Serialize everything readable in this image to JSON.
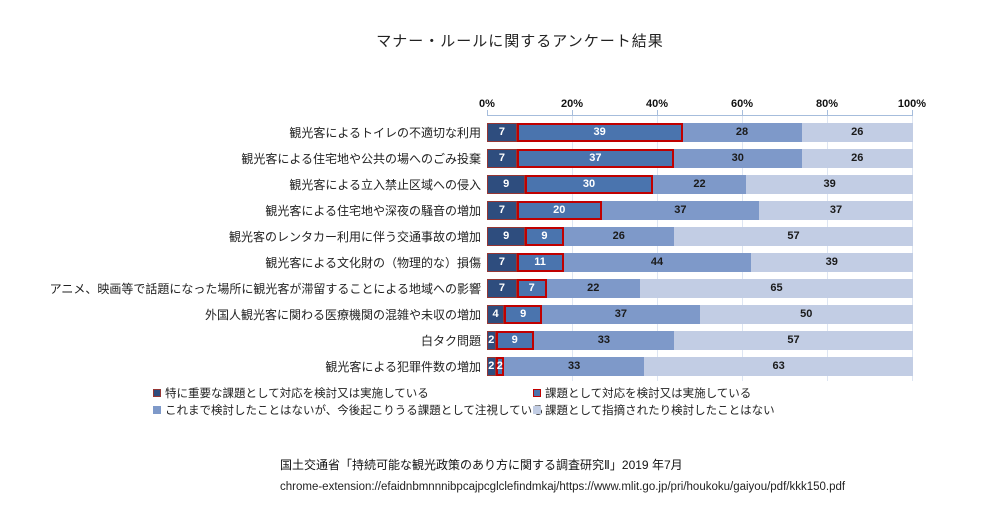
{
  "title": "マナー・ルールに関するアンケート結果",
  "chart_data": {
    "type": "bar",
    "orientation": "horizontal-stacked",
    "title": "マナー・ルールに関するアンケート結果",
    "xlim": [
      0,
      100
    ],
    "x_ticks": [
      "0%",
      "20%",
      "40%",
      "60%",
      "80%",
      "100%"
    ],
    "grid": true,
    "legend_position": "bottom",
    "categories": [
      "観光客によるトイレの不適切な利用",
      "観光客による住宅地や公共の場へのごみ投棄",
      "観光客による立入禁止区域への侵入",
      "観光客による住宅地や深夜の騒音の増加",
      "観光客のレンタカー利用に伴う交通事故の増加",
      "観光客による文化財の（物理的な）損傷",
      "アニメ、映画等で話題になった場所に観光客が滞留することによる地域への影響",
      "外国人観光客に関わる医療機関の混雑や未収の増加",
      "白タク問題",
      "観光客による犯罪件数の増加"
    ],
    "series": [
      {
        "name": "特に重要な課題として対応を検討又は実施している",
        "color": "#2e4d7e",
        "border_color": "#943634",
        "values": [
          7,
          7,
          9,
          7,
          9,
          7,
          7,
          4,
          2,
          2
        ]
      },
      {
        "name": "課題として対応を検討又は実施している",
        "color": "#4a74ae",
        "border_color": "#c00000",
        "values": [
          39,
          37,
          30,
          20,
          9,
          11,
          7,
          9,
          9,
          2
        ]
      },
      {
        "name": "これまで検討したことはないが、今後起こりうる課題として注視している",
        "color": "#7e99c9",
        "border_color": null,
        "values": [
          28,
          30,
          22,
          37,
          26,
          44,
          22,
          37,
          33,
          33
        ]
      },
      {
        "name": "課題として指摘されたり検討したことはない",
        "color": "#c2cde4",
        "border_color": null,
        "values": [
          26,
          26,
          39,
          37,
          57,
          39,
          65,
          50,
          57,
          63
        ]
      }
    ]
  },
  "footer": {
    "source": "国土交通省「持続可能な観光政策のあり方に関する調査研究Ⅱ」2019  年7月",
    "url": "chrome-extension://efaidnbmnnnibpcajpcglclefindmkaj/https://www.mlit.go.jp/pri/houkoku/gaiyou/pdf/kkk150.pdf"
  }
}
